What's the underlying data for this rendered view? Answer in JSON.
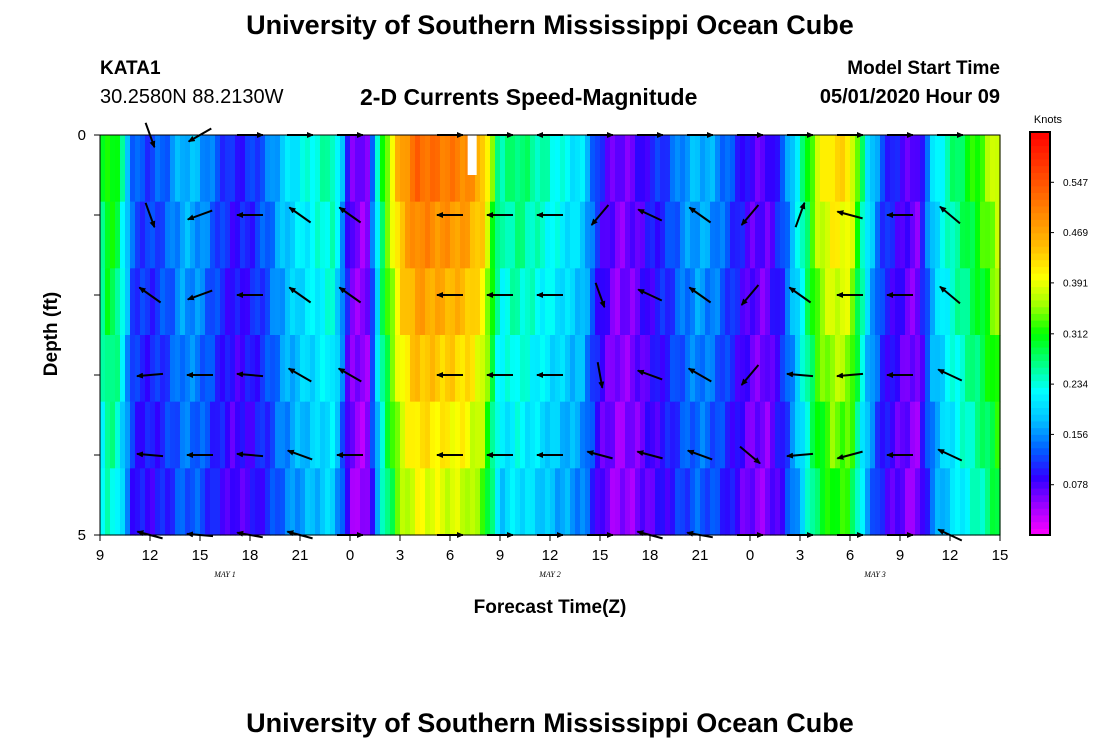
{
  "header": {
    "title": "University of Southern Mississippi Ocean Cube",
    "station_id": "KATA1",
    "station_coords": "30.2580N 88.2130W",
    "plot_title": "2-D Currents Speed-Magnitude",
    "model_label": "Model Start Time",
    "model_time": "05/01/2020 Hour 09"
  },
  "footer": {
    "title": "University of Southern Mississippi Ocean Cube"
  },
  "chart_data": {
    "type": "heatmap",
    "title": "2-D Currents Speed-Magnitude",
    "xlabel": "Forecast Time(Z)",
    "ylabel": "Depth (ft)",
    "x_range_hours": [
      0,
      54
    ],
    "x_tick_labels": [
      "9",
      "12",
      "15",
      "18",
      "21",
      "0",
      "3",
      "6",
      "9",
      "12",
      "15",
      "18",
      "21",
      "0",
      "3",
      "6",
      "9",
      "12",
      "15"
    ],
    "day_labels": [
      {
        "label": "MAY 1",
        "hour": 7.5
      },
      {
        "label": "MAY 2",
        "hour": 27
      },
      {
        "label": "MAY 3",
        "hour": 46.5
      }
    ],
    "y_tick_labels": [
      "0",
      "5"
    ],
    "depth_range_ft": [
      0,
      5
    ],
    "depth_levels_ft": [
      0,
      1,
      2,
      3,
      4,
      5
    ],
    "colorbar": {
      "units": "Knots",
      "min": 0,
      "max": 0.625,
      "tick_values": [
        0.078,
        0.156,
        0.234,
        0.312,
        0.391,
        0.469,
        0.547
      ],
      "colors": [
        "#ff00ff",
        "#a000ff",
        "#3000ff",
        "#0060ff",
        "#00c0ff",
        "#00ffff",
        "#00ff80",
        "#00ff00",
        "#a0ff00",
        "#ffff00",
        "#ffc000",
        "#ff9000",
        "#ff6000",
        "#ff3000",
        "#ff0000"
      ]
    },
    "speed_timeseries": {
      "hours": [
        0,
        0.5,
        1,
        1.5,
        2,
        3,
        4,
        5,
        6,
        7,
        8,
        9,
        10,
        11,
        12,
        13,
        14,
        14.5,
        15,
        16,
        17,
        18,
        19,
        20,
        21,
        22,
        23,
        24,
        25,
        26,
        27,
        28,
        29,
        30,
        31,
        32,
        33,
        34,
        35,
        36,
        37,
        38,
        39,
        40,
        41,
        42,
        43,
        44,
        45,
        46,
        47,
        48,
        49,
        50,
        51,
        52,
        53,
        54
      ],
      "values": [
        0.27,
        0.33,
        0.31,
        0.22,
        0.13,
        0.12,
        0.14,
        0.18,
        0.17,
        0.13,
        0.1,
        0.11,
        0.14,
        0.19,
        0.22,
        0.24,
        0.26,
        0.18,
        0.07,
        0.05,
        0.32,
        0.47,
        0.53,
        0.52,
        0.51,
        0.5,
        0.45,
        0.25,
        0.28,
        0.26,
        0.24,
        0.22,
        0.2,
        0.1,
        0.06,
        0.07,
        0.1,
        0.12,
        0.16,
        0.18,
        0.16,
        0.12,
        0.08,
        0.07,
        0.13,
        0.24,
        0.38,
        0.43,
        0.42,
        0.22,
        0.12,
        0.09,
        0.06,
        0.2,
        0.26,
        0.3,
        0.34,
        0.4
      ]
    },
    "missing_cell": {
      "hour": 22.3,
      "depth_ft": 0
    },
    "vectors": {
      "hours": [
        3,
        6,
        9,
        12,
        15,
        21,
        24,
        27,
        30,
        33,
        36,
        39,
        42,
        45,
        48,
        51
      ],
      "depths_ft": [
        0,
        1,
        2,
        3,
        4,
        5
      ],
      "angles_deg": [
        [
          -70,
          210,
          0,
          0,
          0,
          0,
          0,
          180,
          0,
          0,
          0,
          0,
          0,
          0,
          0,
          0
        ],
        [
          -70,
          200,
          180,
          145,
          145,
          180,
          180,
          180,
          -130,
          155,
          145,
          -130,
          70,
          165,
          180,
          140
        ],
        [
          145,
          200,
          180,
          145,
          145,
          180,
          180,
          180,
          -70,
          155,
          145,
          -130,
          145,
          180,
          180,
          140
        ],
        [
          185,
          180,
          175,
          150,
          150,
          180,
          180,
          180,
          -80,
          160,
          150,
          -130,
          175,
          185,
          180,
          155
        ],
        [
          175,
          180,
          175,
          160,
          180,
          180,
          180,
          180,
          165,
          165,
          160,
          -40,
          185,
          195,
          180,
          155
        ],
        [
          165,
          175,
          170,
          165,
          0,
          0,
          0,
          0,
          0,
          165,
          170,
          0,
          0,
          0,
          0,
          155
        ]
      ]
    }
  }
}
